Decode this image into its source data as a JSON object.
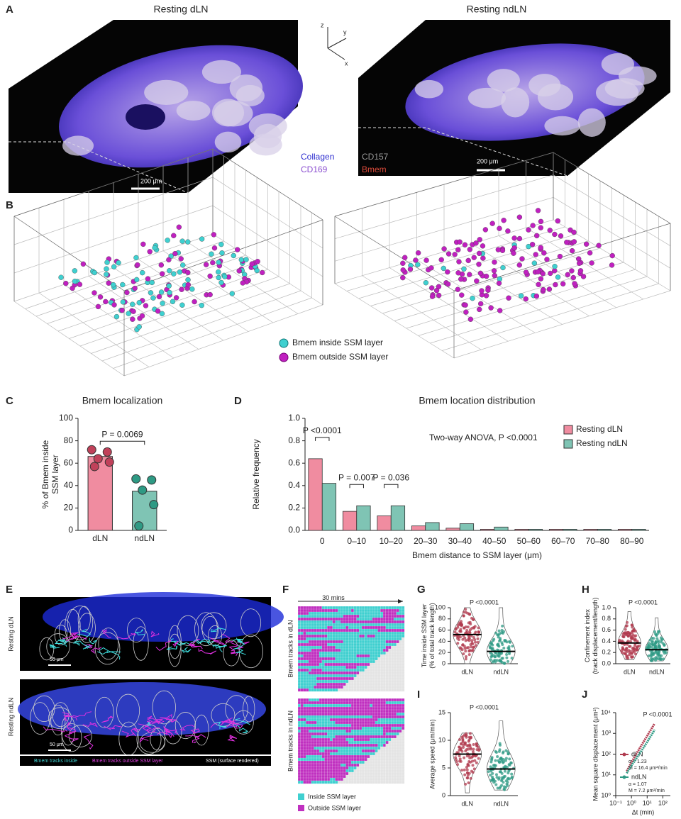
{
  "figure": {
    "panel_labels": [
      "A",
      "B",
      "C",
      "D",
      "E",
      "F",
      "G",
      "H",
      "I",
      "J"
    ],
    "a": {
      "titles": [
        "Resting dLN",
        "Resting ndLN"
      ],
      "axes": [
        "z",
        "y",
        "x"
      ],
      "legend": [
        "Collagen",
        "CD157",
        "CD169",
        "Bmem"
      ],
      "scale_bars": [
        "200 μm",
        "200 μm"
      ]
    },
    "b": {
      "legend": [
        "Bmem inside SSM layer",
        "Bmem outside SSM layer"
      ]
    },
    "e": {
      "rows": [
        "Resting dLN",
        "Resting ndLN"
      ],
      "scale_bars": [
        "50 μm",
        "50 μm"
      ],
      "legend": [
        "Bmem tracks inside",
        "Bmem tracks outside SSM layer",
        "SSM (surface rendered)"
      ]
    },
    "f": {
      "time": "30 mins",
      "rows": [
        "Bmem tracks in dLN",
        "Bmem tracks in ndLN"
      ],
      "legend": [
        "Inside SSM layer",
        "Outside SSM layer"
      ]
    }
  },
  "chart_data": [
    {
      "type": "bar",
      "title": "Bmem localization",
      "ylabel": [
        "% of Bmem inside",
        "SSM layer"
      ],
      "categories": [
        "dLN",
        "ndLN"
      ],
      "values": [
        66,
        35
      ],
      "colors": [
        "#f08ca0",
        "#7fc4b4"
      ],
      "point_colors": [
        "#c0415a",
        "#2e9a84"
      ],
      "points": [
        [
          72,
          70,
          64,
          61,
          57
        ],
        [
          46,
          45,
          36,
          23,
          4
        ]
      ],
      "ylim": [
        0,
        100
      ],
      "yticks": [
        0,
        20,
        40,
        60,
        80,
        100
      ],
      "annotations": [
        "P = 0.0069"
      ]
    },
    {
      "type": "bar",
      "title": "Bmem location distribution",
      "ylabel": "Relative frequency",
      "xlabel": "Bmem distance to SSM layer (μm)",
      "categories": [
        "0",
        "0–10",
        "10–20",
        "20–30",
        "30–40",
        "40–50",
        "50–60",
        "60–70",
        "70–80",
        "80–90"
      ],
      "series": [
        {
          "name": "Resting dLN",
          "color": "#f08ca0",
          "values": [
            0.64,
            0.17,
            0.13,
            0.04,
            0.02,
            0.01,
            0.01,
            0.01,
            0.01,
            0.01
          ]
        },
        {
          "name": "Resting ndLN",
          "color": "#7fc4b4",
          "values": [
            0.42,
            0.22,
            0.22,
            0.07,
            0.06,
            0.03,
            0.01,
            0.01,
            0.01,
            0.01
          ]
        }
      ],
      "ylim": [
        0,
        1.0
      ],
      "yticks": [
        {
          "value": 0,
          "label": "0.0"
        },
        {
          "value": 0.2,
          "label": "0.2"
        },
        {
          "value": 0.4,
          "label": "0.4"
        },
        {
          "value": 0.6,
          "label": "0.6"
        },
        {
          "value": 0.8,
          "label": "0.8"
        },
        {
          "value": 1.0,
          "label": "1.0"
        }
      ],
      "annotations": [
        "P <0.0001",
        "P = 0.007",
        "P = 0.036"
      ],
      "note": "Two-way ANOVA, P <0.0001",
      "legend": "upper right"
    },
    {
      "type": "violin",
      "ylabel": [
        "Time inside SSM layer",
        "(% of total track length)"
      ],
      "categories": [
        "dLN",
        "ndLN"
      ],
      "medians": [
        52,
        22
      ],
      "ranges": [
        [
          0,
          100
        ],
        [
          0,
          100
        ]
      ],
      "colors": [
        "#b03a4e",
        "#2e9a84"
      ],
      "ylim": [
        0,
        100
      ],
      "yticks": [
        0,
        20,
        40,
        60,
        80,
        100
      ],
      "annotations": [
        "P <0.0001"
      ]
    },
    {
      "type": "violin",
      "ylabel": [
        "Confinement index",
        "(track displacement/length)"
      ],
      "categories": [
        "dLN",
        "ndLN"
      ],
      "medians": [
        0.37,
        0.25
      ],
      "ranges": [
        [
          0.07,
          0.93
        ],
        [
          0.05,
          0.82
        ]
      ],
      "colors": [
        "#b03a4e",
        "#2e9a84"
      ],
      "ylim": [
        0,
        1.0
      ],
      "yticks": [
        {
          "value": 0,
          "label": "0.0"
        },
        {
          "value": 0.2,
          "label": "0.2"
        },
        {
          "value": 0.4,
          "label": "0.4"
        },
        {
          "value": 0.6,
          "label": "0.6"
        },
        {
          "value": 0.8,
          "label": "0.8"
        },
        {
          "value": 1.0,
          "label": "1.0"
        }
      ],
      "annotations": [
        "P <0.0001"
      ]
    },
    {
      "type": "violin",
      "ylabel": "Average speed (μm/min)",
      "categories": [
        "dLN",
        "ndLN"
      ],
      "medians": [
        7.5,
        4.8
      ],
      "ranges": [
        [
          0.5,
          11.3
        ],
        [
          1,
          13.5
        ]
      ],
      "colors": [
        "#b03a4e",
        "#2e9a84"
      ],
      "ylim": [
        0,
        15
      ],
      "yticks": [
        0,
        5,
        10,
        15
      ],
      "annotations": [
        "P <0.0001"
      ]
    },
    {
      "type": "line",
      "ylabel": "Mean square displacement (μm²)",
      "xlabel": "Δt (min)",
      "xscale": "log",
      "yscale": "log",
      "x": [
        0.5,
        1,
        2,
        5,
        10,
        20,
        30
      ],
      "series": [
        {
          "name": "dLN",
          "color": "#b03a4e",
          "values": [
            15,
            40,
            100,
            320,
            750,
            1800,
            3000
          ],
          "notes": [
            "α = 1.23",
            "M = 16.4 μm²/min"
          ]
        },
        {
          "name": "ndLN",
          "color": "#2e9a84",
          "values": [
            12,
            28,
            60,
            170,
            380,
            900,
            1500
          ],
          "notes": [
            "α = 1.07",
            "M = 7.2 μm²/min"
          ]
        }
      ],
      "xlim": [
        0.1,
        300
      ],
      "ylim": [
        1,
        10000
      ],
      "xticks": [
        {
          "value": 0.1,
          "label": "10⁻¹"
        },
        {
          "value": 1,
          "label": "10⁰"
        },
        {
          "value": 10,
          "label": "10¹"
        },
        {
          "value": 100,
          "label": "10²"
        }
      ],
      "yticks": [
        {
          "value": 1,
          "label": "10⁰"
        },
        {
          "value": 10,
          "label": "10¹"
        },
        {
          "value": 100,
          "label": "10²"
        },
        {
          "value": 1000,
          "label": "10³"
        },
        {
          "value": 10000,
          "label": "10⁴"
        }
      ],
      "annotations": [
        "P <0.0001"
      ]
    }
  ]
}
